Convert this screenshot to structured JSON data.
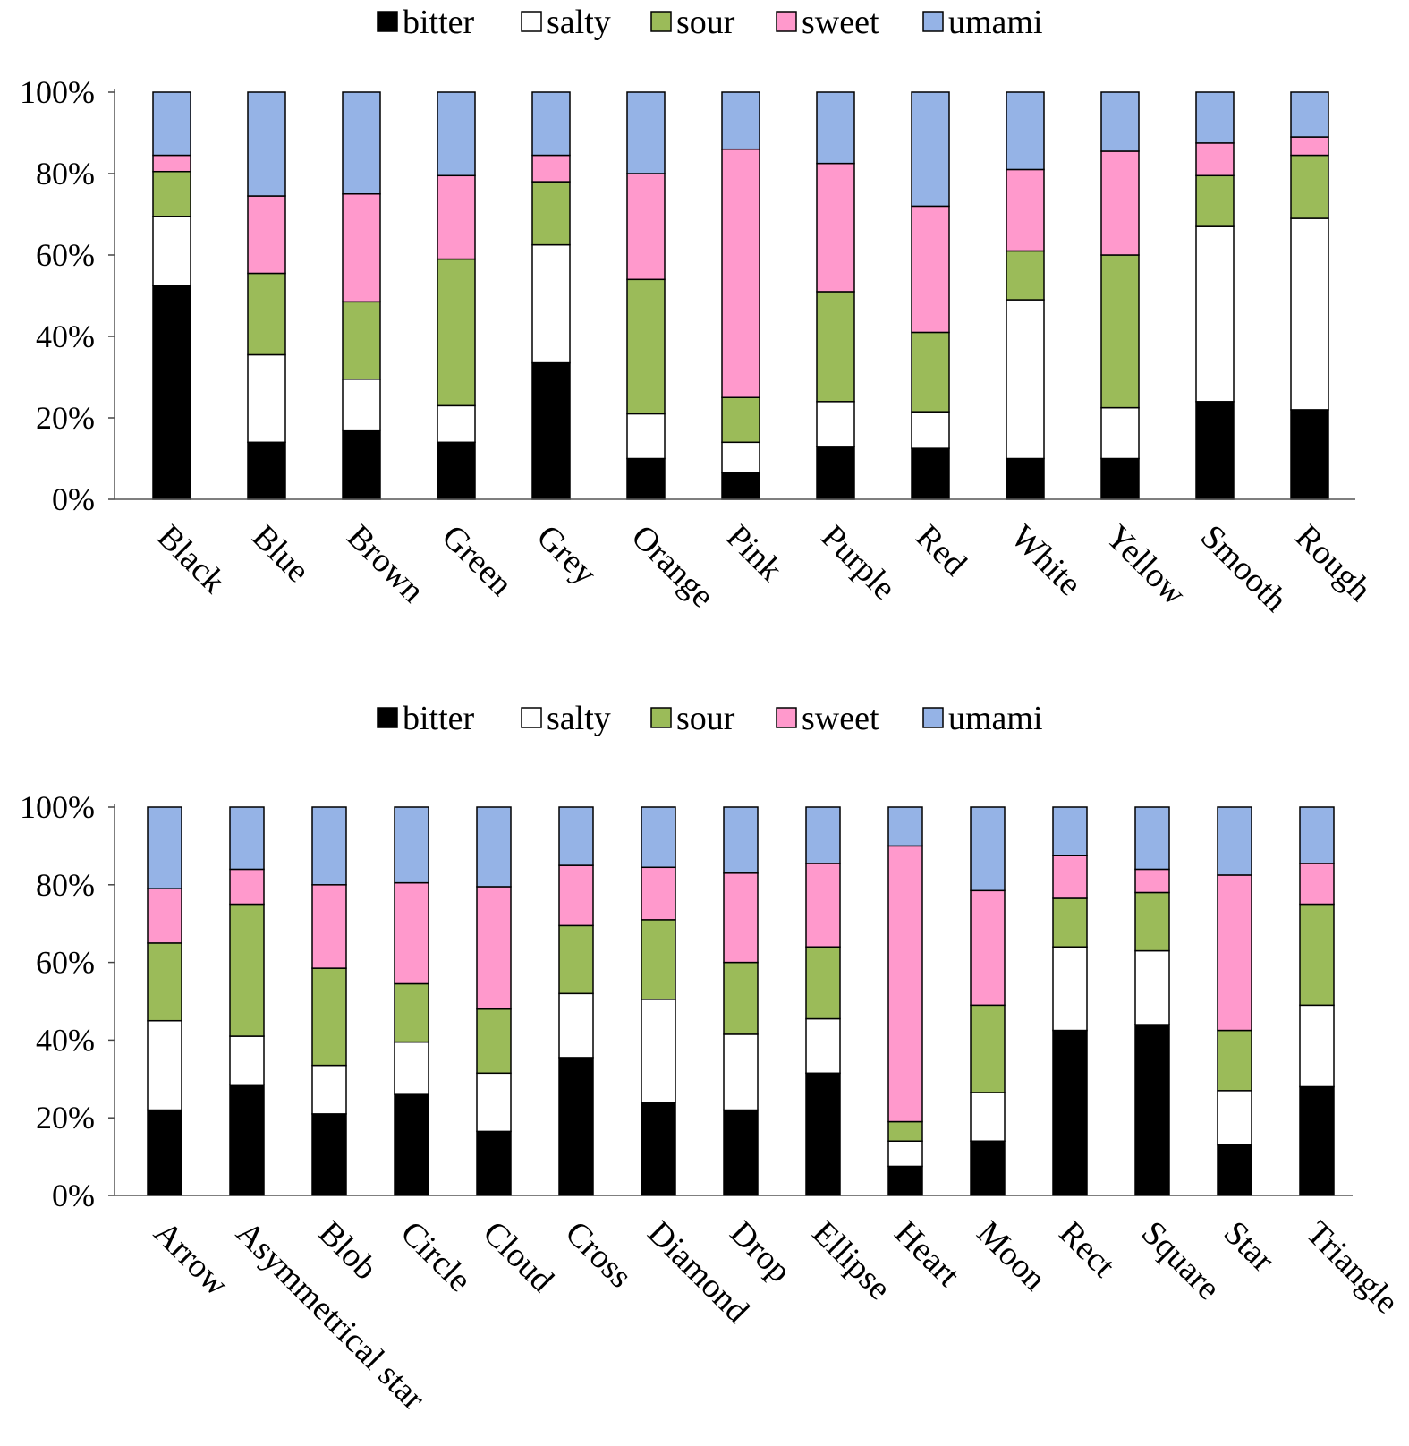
{
  "colors": {
    "bitter": "#000000",
    "salty": "#ffffff",
    "sour": "#9bbb59",
    "sweet": "#ff99cc",
    "umami": "#95b3e6"
  },
  "chart_data": [
    {
      "type": "bar",
      "stacked": true,
      "legend_position": "top",
      "legend": [
        "bitter",
        "salty",
        "sour",
        "sweet",
        "umami"
      ],
      "y_ticks": [
        "0%",
        "20%",
        "40%",
        "60%",
        "80%",
        "100%"
      ],
      "ylim": [
        0,
        100
      ],
      "categories": [
        "Black",
        "Blue",
        "Brown",
        "Green",
        "Grey",
        "Orange",
        "Pink",
        "Purple",
        "Red",
        "White",
        "Yellow",
        "Smooth",
        "Rough"
      ],
      "series": [
        {
          "name": "bitter",
          "values": [
            52.5,
            14,
            17,
            14,
            33.5,
            10,
            6.5,
            13,
            12.5,
            10,
            10,
            24,
            22
          ]
        },
        {
          "name": "salty",
          "values": [
            17,
            21.5,
            12.5,
            9,
            29,
            11,
            7.5,
            11,
            9,
            39,
            12.5,
            43,
            47
          ]
        },
        {
          "name": "sour",
          "values": [
            11,
            20,
            19,
            36,
            15.5,
            33,
            11,
            27,
            19.5,
            12,
            37.5,
            12.5,
            15.5
          ]
        },
        {
          "name": "sweet",
          "values": [
            4,
            19,
            26.5,
            20.5,
            6.5,
            26,
            61,
            31.5,
            31,
            20,
            25.5,
            8,
            4.5
          ]
        },
        {
          "name": "umami",
          "values": [
            15.5,
            25.5,
            25,
            20.5,
            15.5,
            20,
            14,
            17.5,
            28,
            19,
            14.5,
            12.5,
            11
          ]
        }
      ]
    },
    {
      "type": "bar",
      "stacked": true,
      "legend_position": "top",
      "legend": [
        "bitter",
        "salty",
        "sour",
        "sweet",
        "umami"
      ],
      "y_ticks": [
        "0%",
        "20%",
        "40%",
        "60%",
        "80%",
        "100%"
      ],
      "ylim": [
        0,
        100
      ],
      "categories": [
        "Arrow",
        "Asymmetrical star",
        "Blob",
        "Circle",
        "Cloud",
        "Cross",
        "Diamond",
        "Drop",
        "Ellipse",
        "Heart",
        "Moon",
        "Rect",
        "Square",
        "Star",
        "Triangle"
      ],
      "series": [
        {
          "name": "bitter",
          "values": [
            22,
            28.5,
            21,
            26,
            16.5,
            35.5,
            24,
            22,
            31.5,
            7.5,
            14,
            42.5,
            44,
            13,
            28
          ]
        },
        {
          "name": "salty",
          "values": [
            23,
            12.5,
            12.5,
            13.5,
            15,
            16.5,
            26.5,
            19.5,
            14,
            6.5,
            12.5,
            21.5,
            19,
            14,
            21
          ]
        },
        {
          "name": "sour",
          "values": [
            20,
            34,
            25,
            15,
            16.5,
            17.5,
            20.5,
            18.5,
            18.5,
            5,
            22.5,
            12.5,
            15,
            15.5,
            26
          ]
        },
        {
          "name": "sweet",
          "values": [
            14,
            9,
            21.5,
            26,
            31.5,
            15.5,
            13.5,
            23,
            21.5,
            71,
            29.5,
            11,
            6,
            40,
            10.5
          ]
        },
        {
          "name": "umami",
          "values": [
            21,
            16,
            20,
            19.5,
            20.5,
            15,
            15.5,
            17,
            14.5,
            10,
            21.5,
            12.5,
            16,
            17.5,
            14.5
          ]
        }
      ]
    }
  ]
}
